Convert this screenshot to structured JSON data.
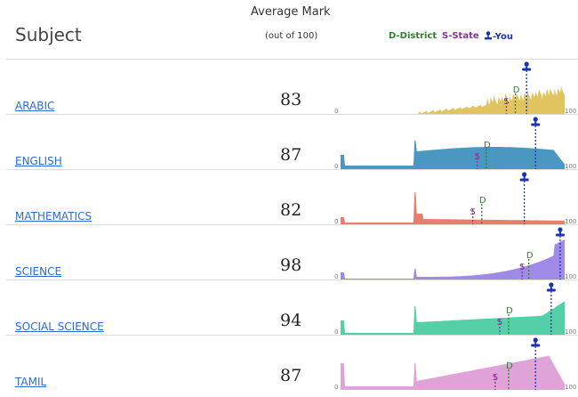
{
  "header": {
    "subject_label": "Subject",
    "average_label": "Average Mark",
    "out_of_label": "(out of 100)",
    "legend": {
      "district": "D-District",
      "state": "S-State",
      "you": "-You"
    }
  },
  "axis": {
    "min_label": "0",
    "max_label": "100"
  },
  "marker_letters": {
    "district": "D",
    "state": "S"
  },
  "colors": {
    "district": "#2f7f2f",
    "state": "#8b2f9b",
    "you": "#1a33b5"
  },
  "subjects": [
    {
      "name": "ARABIC",
      "average": "83",
      "color": "#e0c460",
      "you": 83,
      "district": 78,
      "state": 74
    },
    {
      "name": "ENGLISH",
      "average": "87",
      "color": "#4a97c2",
      "you": 87,
      "district": 65,
      "state": 61
    },
    {
      "name": "MATHEMATICS",
      "average": "82",
      "color": "#e87d6f",
      "you": 82,
      "district": 63,
      "state": 59
    },
    {
      "name": "SCIENCE",
      "average": "98",
      "color": "#a08ae8",
      "you": 98,
      "district": 84,
      "state": 81
    },
    {
      "name": "SOCIAL SCIENCE",
      "average": "94",
      "color": "#55cfa7",
      "you": 94,
      "district": 75,
      "state": 71
    },
    {
      "name": "TAMIL",
      "average": "87",
      "color": "#dfa3d8",
      "you": 87,
      "district": 75,
      "state": 69
    }
  ]
}
